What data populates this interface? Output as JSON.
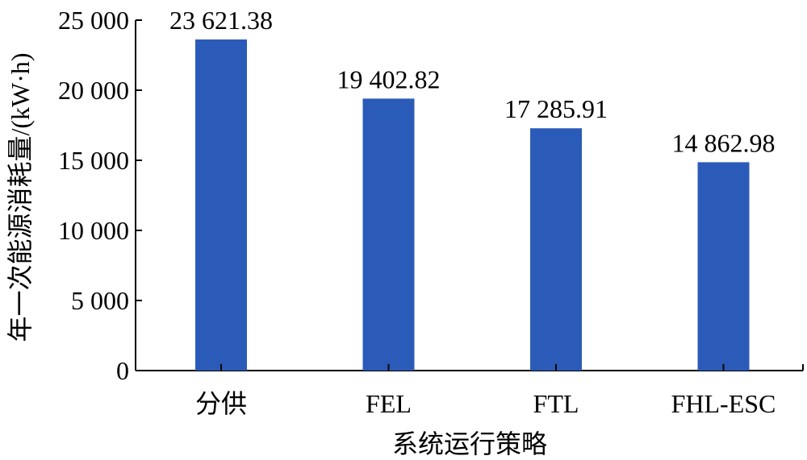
{
  "chart_data": {
    "type": "bar",
    "title": "",
    "xlabel": "系统运行策略",
    "ylabel": "年一次能源消耗量/(kW·h)",
    "categories": [
      "分供",
      "FEL",
      "FTL",
      "FHL-ESC"
    ],
    "values": [
      23621.38,
      19402.82,
      17285.91,
      14862.98
    ],
    "value_labels": [
      "23 621.38",
      "19 402.82",
      "17 285.91",
      "14 862.98"
    ],
    "ylim": [
      0,
      25000
    ],
    "yticks": [
      0,
      5000,
      10000,
      15000,
      20000,
      25000
    ],
    "ytick_labels": [
      "0",
      "5 000",
      "10 000",
      "15 000",
      "20 000",
      "25 000"
    ],
    "grid": false,
    "bar_color": "#2B5BB8"
  }
}
